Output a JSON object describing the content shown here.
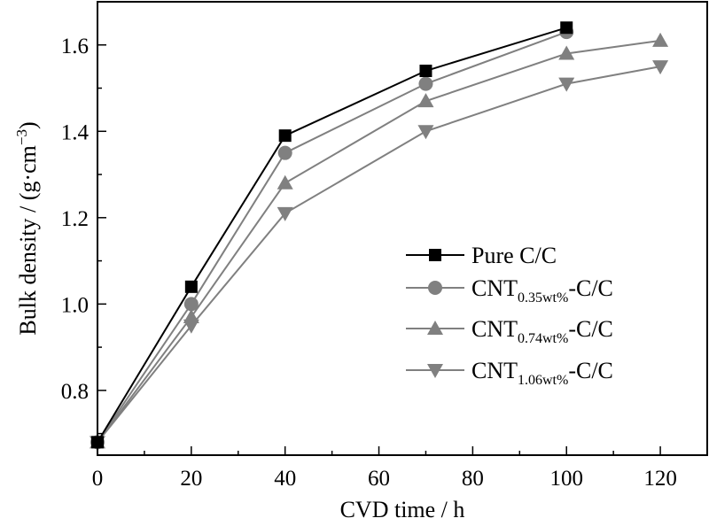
{
  "chart_data": {
    "type": "line",
    "xlabel": "CVD time / h",
    "ylabel_main": "Bulk density / (g·cm",
    "ylabel_sup": "−3",
    "ylabel_close": ")",
    "xlim": [
      0,
      130
    ],
    "ylim": [
      0.65,
      1.7
    ],
    "xticks": [
      0,
      20,
      40,
      60,
      80,
      100,
      120
    ],
    "yticks": [
      0.8,
      1.0,
      1.2,
      1.4,
      1.6
    ],
    "xtick_labels": [
      "0",
      "20",
      "40",
      "60",
      "80",
      "100",
      "120"
    ],
    "ytick_labels": [
      "0.8",
      "1.0",
      "1.2",
      "1.4",
      "1.6"
    ],
    "legend_position": "center-right",
    "series": [
      {
        "name": "Pure C/C",
        "name_parts": [
          "Pure C/C",
          "",
          ""
        ],
        "marker": "square",
        "color": "#000000",
        "x": [
          0,
          20,
          40,
          70,
          100
        ],
        "y": [
          0.68,
          1.04,
          1.39,
          1.54,
          1.64
        ]
      },
      {
        "name": "CNT0.35wt%-C/C",
        "name_parts": [
          "CNT",
          "0.35wt%",
          "-C/C"
        ],
        "marker": "circle",
        "color": "#808080",
        "x": [
          0,
          20,
          40,
          70,
          100
        ],
        "y": [
          0.68,
          1.0,
          1.35,
          1.51,
          1.63
        ]
      },
      {
        "name": "CNT0.74wt%-C/C",
        "name_parts": [
          "CNT",
          "0.74wt%",
          "-C/C"
        ],
        "marker": "triangle-up",
        "color": "#808080",
        "x": [
          0,
          20,
          40,
          70,
          100,
          120
        ],
        "y": [
          0.68,
          0.97,
          1.28,
          1.47,
          1.58,
          1.61
        ]
      },
      {
        "name": "CNT1.06wt%-C/C",
        "name_parts": [
          "CNT",
          "1.06wt%",
          "-C/C"
        ],
        "marker": "triangle-down",
        "color": "#808080",
        "x": [
          0,
          20,
          40,
          70,
          100,
          120
        ],
        "y": [
          0.68,
          0.95,
          1.21,
          1.4,
          1.51,
          1.55
        ]
      }
    ]
  }
}
